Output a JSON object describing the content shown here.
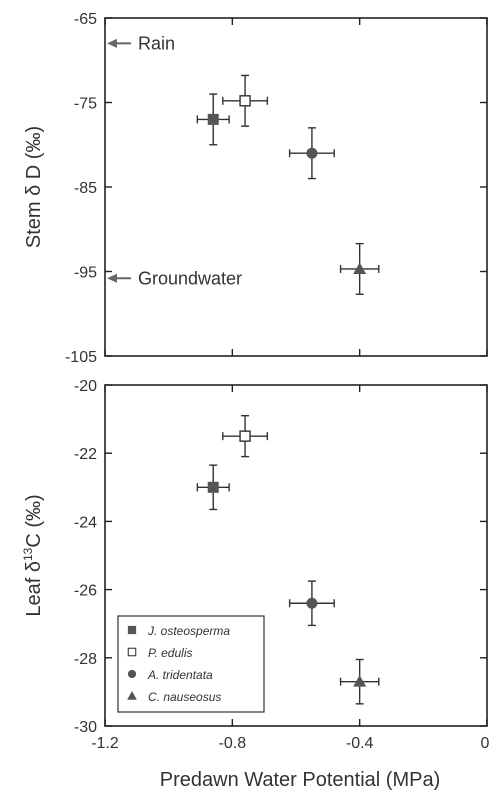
{
  "chart_data": [
    {
      "type": "scatter",
      "ylabel_prefix": "Stem δ D (",
      "ylabel_suffix": "‰)",
      "xlim": [
        -1.2,
        0
      ],
      "ylim": [
        -105,
        -65
      ],
      "yticks": [
        "-65",
        "-75",
        "-85",
        "-95",
        "-105"
      ],
      "ytick_values": [
        -65,
        -75,
        -85,
        -95,
        -105
      ],
      "series": [
        {
          "name": "J. osteosperma",
          "marker": "filled-square",
          "x": -0.86,
          "y": -77,
          "xerr": 0.05,
          "yerr": 3
        },
        {
          "name": "P. edulis",
          "marker": "open-square",
          "x": -0.76,
          "y": -74.8,
          "xerr": 0.07,
          "yerr": 3
        },
        {
          "name": "A. tridentata",
          "marker": "filled-circle",
          "x": -0.55,
          "y": -81,
          "xerr": 0.07,
          "yerr": 3
        },
        {
          "name": "C. nauseosus",
          "marker": "filled-triangle",
          "x": -0.4,
          "y": -94.7,
          "xerr": 0.06,
          "yerr": 3
        }
      ],
      "annotations": [
        {
          "label": "Rain",
          "y": -68
        },
        {
          "label": "Groundwater",
          "y": -95.8
        }
      ]
    },
    {
      "type": "scatter",
      "ylabel_prefix": "Leaf δ",
      "ylabel_sup": "13",
      "ylabel_suffix": "C (‰)",
      "xlabel": "Predawn Water Potential (MPa)",
      "xlim": [
        -1.2,
        0
      ],
      "ylim": [
        -30,
        -20
      ],
      "xticks": [
        "-1.2",
        "-0.8",
        "-0.4",
        "0"
      ],
      "xtick_values": [
        -1.2,
        -0.8,
        -0.4,
        0
      ],
      "yticks": [
        "-20",
        "-22",
        "-24",
        "-26",
        "-28",
        "-30"
      ],
      "ytick_values": [
        -20,
        -22,
        -24,
        -26,
        -28,
        -30
      ],
      "series": [
        {
          "name": "J. osteosperma",
          "marker": "filled-square",
          "x": -0.86,
          "y": -23.0,
          "xerr": 0.05,
          "yerr": 0.65
        },
        {
          "name": "P. edulis",
          "marker": "open-square",
          "x": -0.76,
          "y": -21.5,
          "xerr": 0.07,
          "yerr": 0.6
        },
        {
          "name": "A. tridentata",
          "marker": "filled-circle",
          "x": -0.55,
          "y": -26.4,
          "xerr": 0.07,
          "yerr": 0.65
        },
        {
          "name": "C. nauseosus",
          "marker": "filled-triangle",
          "x": -0.4,
          "y": -28.7,
          "xerr": 0.06,
          "yerr": 0.65
        }
      ],
      "legend": {
        "placement": "bottom-left",
        "entries": [
          "J. osteosperma",
          "P. edulis",
          "A. tridentata",
          "C. nauseosus"
        ]
      }
    }
  ],
  "colors": {
    "marker": "#555555",
    "axis": "#222222",
    "text": "#333333"
  }
}
